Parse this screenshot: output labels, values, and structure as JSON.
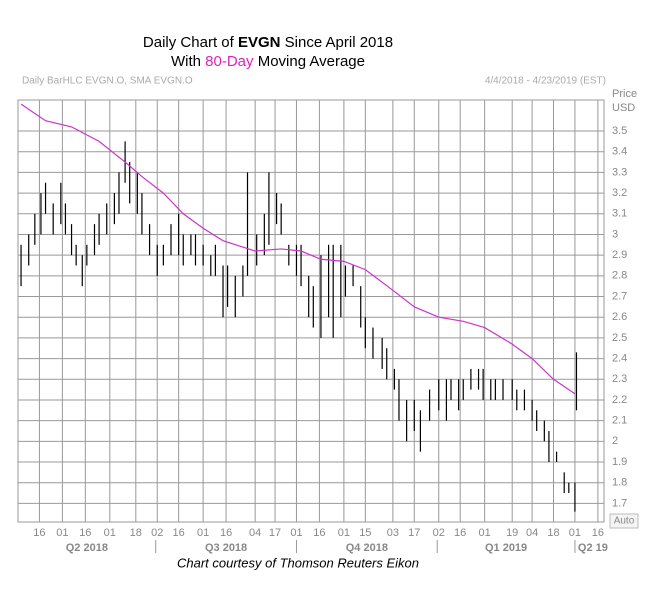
{
  "chart_data": {
    "type": "hlc",
    "title_parts": [
      "Daily Chart of ",
      "EVGN",
      " Since April 2018"
    ],
    "subtitle_parts": [
      "With ",
      "80-Day",
      " Moving Average"
    ],
    "header_left": "Daily BarHLC EVGN.O, SMA EVGN.O",
    "header_right": "4/4/2018 - 4/23/2019 (EST)",
    "y_axis_label": [
      "Price",
      "USD"
    ],
    "caption": "Chart courtesy of Thomson Reuters Eikon",
    "button": "Auto",
    "xlim": [
      "2018-04-02",
      "2019-04-20"
    ],
    "ylim": [
      1.61,
      3.65
    ],
    "yticks": [
      1.7,
      1.8,
      1.9,
      2,
      2.1,
      2.2,
      2.3,
      2.4,
      2.5,
      2.6,
      2.7,
      2.8,
      2.9,
      3,
      3.1,
      3.2,
      3.3,
      3.4,
      3.5
    ],
    "xticks": [
      {
        "value": "2018-04-16",
        "label": "16"
      },
      {
        "value": "2018-05-01",
        "label": "01"
      },
      {
        "value": "2018-05-16",
        "label": "16"
      },
      {
        "value": "2018-06-01",
        "label": "01"
      },
      {
        "value": "2018-06-18",
        "label": "18"
      },
      {
        "value": "2018-07-02",
        "label": "02"
      },
      {
        "value": "2018-07-16",
        "label": "16"
      },
      {
        "value": "2018-08-01",
        "label": "01"
      },
      {
        "value": "2018-08-16",
        "label": "16"
      },
      {
        "value": "2018-09-04",
        "label": "04"
      },
      {
        "value": "2018-09-17",
        "label": "17"
      },
      {
        "value": "2018-10-01",
        "label": "01"
      },
      {
        "value": "2018-10-16",
        "label": "16"
      },
      {
        "value": "2018-11-01",
        "label": "01"
      },
      {
        "value": "2018-11-15",
        "label": "15"
      },
      {
        "value": "2018-12-03",
        "label": "03"
      },
      {
        "value": "2018-12-17",
        "label": "17"
      },
      {
        "value": "2019-01-02",
        "label": "02"
      },
      {
        "value": "2019-01-16",
        "label": "16"
      },
      {
        "value": "2019-02-01",
        "label": "01"
      },
      {
        "value": "2019-02-19",
        "label": "19"
      },
      {
        "value": "2019-03-04",
        "label": "04"
      },
      {
        "value": "2019-03-18",
        "label": "18"
      },
      {
        "value": "2019-04-01",
        "label": "01"
      },
      {
        "value": "2019-04-16",
        "label": "16"
      }
    ],
    "quarters": [
      {
        "value": "2018-04-01",
        "label": "Q2 2018"
      },
      {
        "value": "2018-07-01",
        "label": "Q3 2018"
      },
      {
        "value": "2018-10-01",
        "label": "Q4 2018"
      },
      {
        "value": "2019-01-01",
        "label": "Q1 2019"
      },
      {
        "value": "2019-04-01",
        "label": "Q2 19"
      }
    ],
    "grid": true,
    "bars": {
      "color": "#000000",
      "x": [
        "2018-04-04",
        "2018-04-09",
        "2018-04-13",
        "2018-04-17",
        "2018-04-20",
        "2018-04-25",
        "2018-04-30",
        "2018-05-03",
        "2018-05-07",
        "2018-05-10",
        "2018-05-14",
        "2018-05-17",
        "2018-05-22",
        "2018-05-25",
        "2018-05-30",
        "2018-06-04",
        "2018-06-07",
        "2018-06-11",
        "2018-06-14",
        "2018-06-19",
        "2018-06-22",
        "2018-06-27",
        "2018-07-02",
        "2018-07-06",
        "2018-07-11",
        "2018-07-16",
        "2018-07-19",
        "2018-07-24",
        "2018-07-27",
        "2018-08-01",
        "2018-08-06",
        "2018-08-09",
        "2018-08-14",
        "2018-08-17",
        "2018-08-22",
        "2018-08-27",
        "2018-08-30",
        "2018-09-05",
        "2018-09-10",
        "2018-09-13",
        "2018-09-18",
        "2018-09-21",
        "2018-09-26",
        "2018-10-01",
        "2018-10-04",
        "2018-10-09",
        "2018-10-12",
        "2018-10-17",
        "2018-10-22",
        "2018-10-25",
        "2018-10-30",
        "2018-11-02",
        "2018-11-07",
        "2018-11-12",
        "2018-11-15",
        "2018-11-20",
        "2018-11-26",
        "2018-11-29",
        "2018-12-04",
        "2018-12-07",
        "2018-12-12",
        "2018-12-17",
        "2018-12-21",
        "2018-12-27",
        "2019-01-02",
        "2019-01-07",
        "2019-01-10",
        "2019-01-15",
        "2019-01-18",
        "2019-01-23",
        "2019-01-28",
        "2019-01-31",
        "2019-02-05",
        "2019-02-08",
        "2019-02-13",
        "2019-02-19",
        "2019-02-22",
        "2019-02-27",
        "2019-03-04",
        "2019-03-07",
        "2019-03-12",
        "2019-03-15",
        "2019-03-20",
        "2019-03-25",
        "2019-03-28",
        "2019-04-01",
        "2019-04-02"
      ],
      "high": [
        2.95,
        3.0,
        3.1,
        3.2,
        3.25,
        3.15,
        3.25,
        3.15,
        3.05,
        2.95,
        2.9,
        2.95,
        3.05,
        3.1,
        3.15,
        3.2,
        3.3,
        3.45,
        3.35,
        3.3,
        3.2,
        3.05,
        2.95,
        2.95,
        3.05,
        3.1,
        3.0,
        3.0,
        3.0,
        2.95,
        2.9,
        2.95,
        2.85,
        2.85,
        2.8,
        2.85,
        3.3,
        3.0,
        3.1,
        3.3,
        3.2,
        3.15,
        2.95,
        2.95,
        2.95,
        2.8,
        2.75,
        2.9,
        2.95,
        2.95,
        2.95,
        2.85,
        2.85,
        2.75,
        2.6,
        2.55,
        2.5,
        2.45,
        2.35,
        2.3,
        2.2,
        2.2,
        2.15,
        2.25,
        2.3,
        2.3,
        2.3,
        2.3,
        2.3,
        2.35,
        2.35,
        2.35,
        2.3,
        2.3,
        2.3,
        2.3,
        2.25,
        2.25,
        2.2,
        2.15,
        2.1,
        2.05,
        1.95,
        1.85,
        1.8,
        1.8,
        2.43
      ],
      "low": [
        2.75,
        2.85,
        2.95,
        3.0,
        3.1,
        3.0,
        3.05,
        3.0,
        2.9,
        2.85,
        2.75,
        2.85,
        2.9,
        2.95,
        3.0,
        3.05,
        3.1,
        3.25,
        3.15,
        3.1,
        3.0,
        2.9,
        2.8,
        2.85,
        2.9,
        2.9,
        2.85,
        2.9,
        2.85,
        2.85,
        2.8,
        2.8,
        2.6,
        2.65,
        2.6,
        2.7,
        2.8,
        2.85,
        2.9,
        2.95,
        3.05,
        3.0,
        2.85,
        2.8,
        2.75,
        2.6,
        2.55,
        2.5,
        2.6,
        2.5,
        2.6,
        2.7,
        2.75,
        2.55,
        2.45,
        2.4,
        2.35,
        2.3,
        2.25,
        2.1,
        2.0,
        2.05,
        1.95,
        2.1,
        2.15,
        2.1,
        2.2,
        2.15,
        2.2,
        2.25,
        2.25,
        2.2,
        2.2,
        2.2,
        2.2,
        2.2,
        2.15,
        2.15,
        2.1,
        2.05,
        2.0,
        1.9,
        1.9,
        1.75,
        1.75,
        1.66,
        2.15
      ]
    },
    "series": [
      {
        "name": "80-Day",
        "color": "#cc33cc",
        "x": [
          "2018-04-04",
          "2018-04-20",
          "2018-05-07",
          "2018-05-25",
          "2018-06-11",
          "2018-06-22",
          "2018-07-06",
          "2018-07-19",
          "2018-08-01",
          "2018-08-14",
          "2018-09-04",
          "2018-09-21",
          "2018-10-04",
          "2018-10-17",
          "2018-11-01",
          "2018-11-15",
          "2018-12-03",
          "2018-12-17",
          "2019-01-02",
          "2019-01-18",
          "2019-02-01",
          "2019-02-19",
          "2019-03-04",
          "2019-03-18",
          "2019-04-01"
        ],
        "values": [
          3.63,
          3.55,
          3.52,
          3.45,
          3.35,
          3.28,
          3.2,
          3.1,
          3.03,
          2.97,
          2.92,
          2.93,
          2.92,
          2.88,
          2.87,
          2.83,
          2.73,
          2.65,
          2.6,
          2.58,
          2.55,
          2.47,
          2.4,
          2.3,
          2.23
        ]
      }
    ]
  }
}
